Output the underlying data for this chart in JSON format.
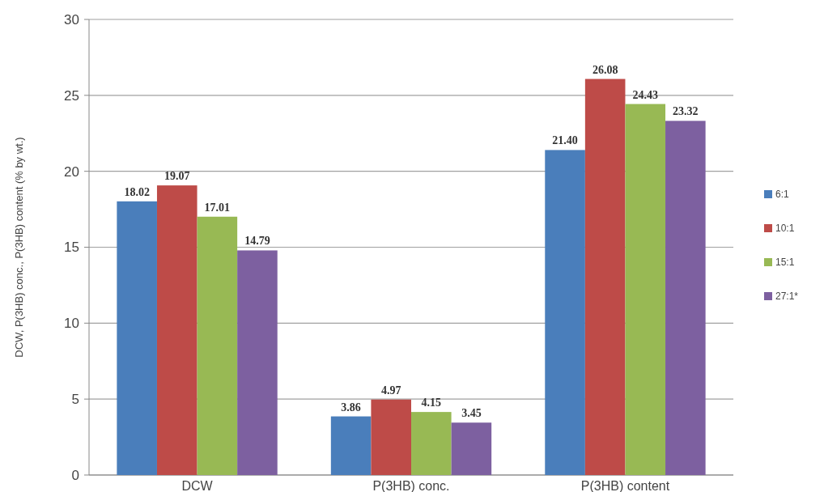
{
  "chart_data": {
    "type": "bar",
    "ylabel": "DCW, P(3HB) conc., P(3HB) content (% by wt.)",
    "categories": [
      "DCW",
      "P(3HB) conc.",
      "P(3HB) content"
    ],
    "series": [
      {
        "name": "6:1",
        "color": "#4a7ebb",
        "values": [
          18.02,
          3.86,
          21.4
        ]
      },
      {
        "name": "10:1",
        "color": "#be4b48",
        "values": [
          19.07,
          4.97,
          26.08
        ]
      },
      {
        "name": "15:1",
        "color": "#98b954",
        "values": [
          17.01,
          4.15,
          24.43
        ]
      },
      {
        "name": "27:1*",
        "color": "#7d60a0",
        "values": [
          14.79,
          3.45,
          23.32
        ]
      }
    ],
    "value_labels": [
      [
        "18.02",
        "3.86",
        "21.40"
      ],
      [
        "19.07",
        "4.97",
        "26.08"
      ],
      [
        "17.01",
        "4.15",
        "24.43"
      ],
      [
        "14.79",
        "3.45",
        "23.32"
      ]
    ],
    "ylim": [
      0,
      30
    ],
    "yticks": [
      0,
      5,
      10,
      15,
      20,
      25,
      30
    ],
    "grid": "y",
    "legend": "right"
  }
}
